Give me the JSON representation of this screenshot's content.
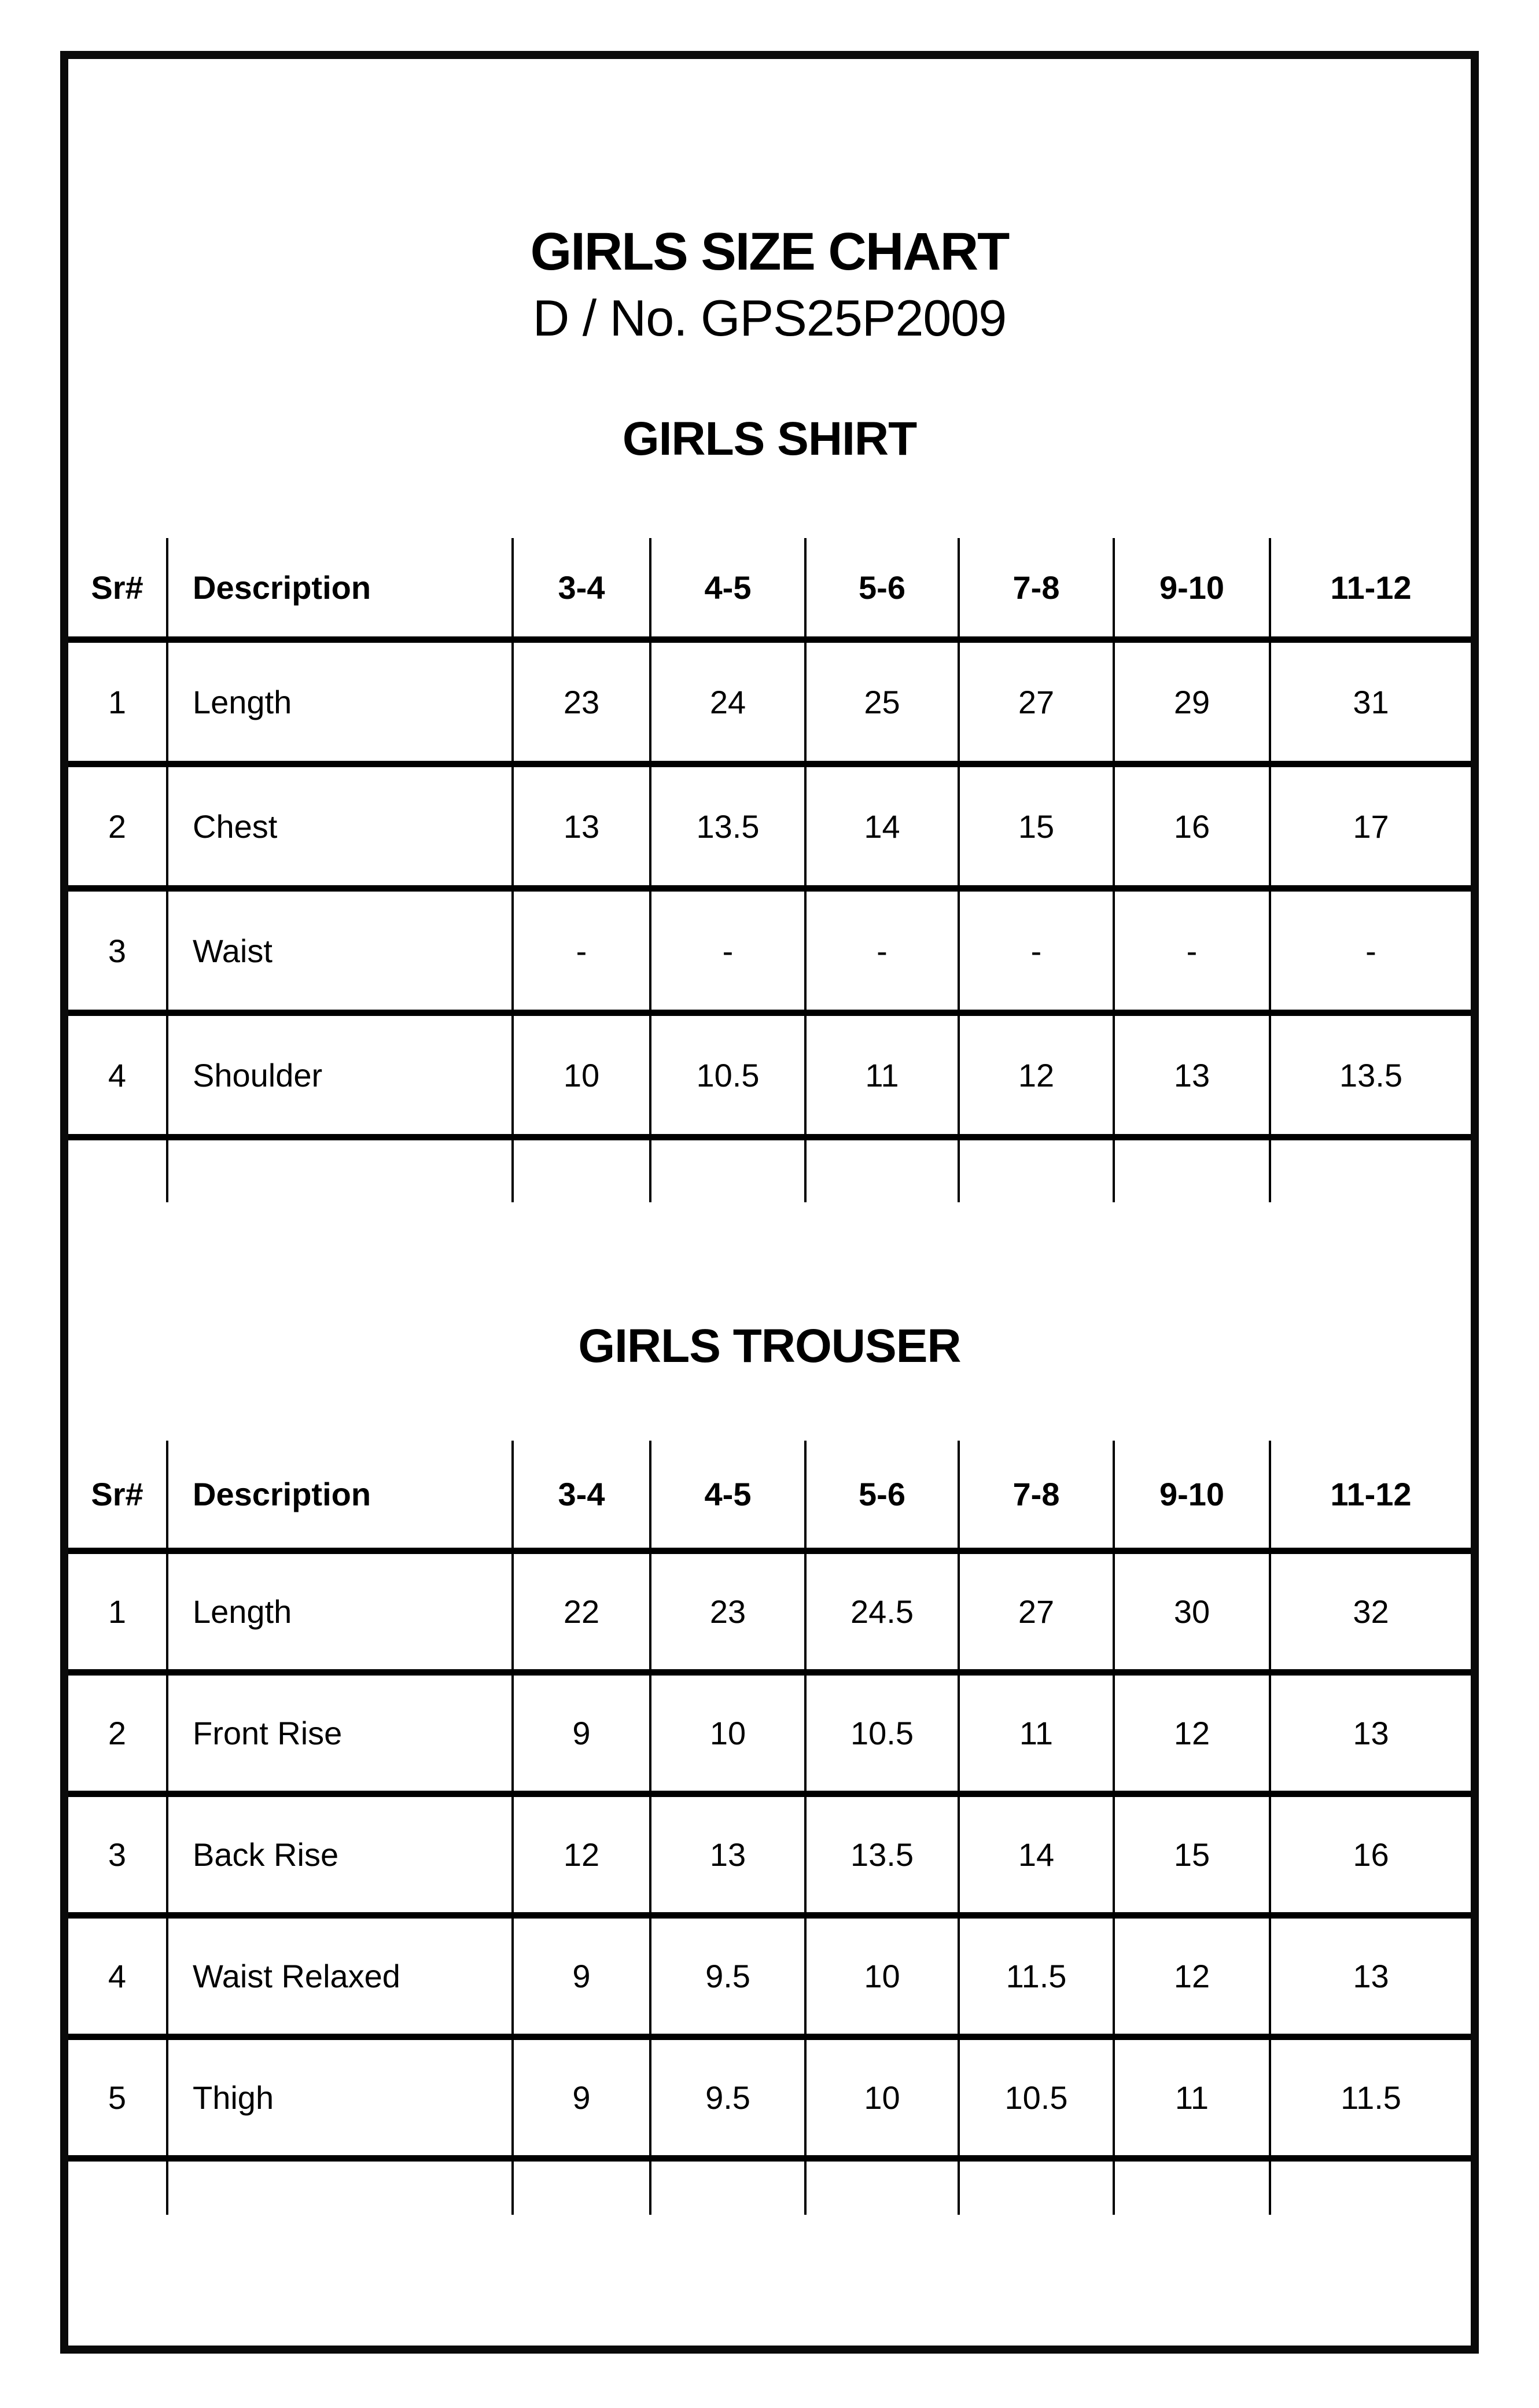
{
  "header": {
    "title": "GIRLS SIZE CHART",
    "design_no": "D / No. GPS25P2009"
  },
  "shirt": {
    "title": "GIRLS SHIRT",
    "columns": [
      "Sr#",
      "Description",
      "3-4",
      "4-5",
      "5-6",
      "7-8",
      "9-10",
      "11-12"
    ],
    "rows": [
      {
        "sr": "1",
        "desc": "Length",
        "values": [
          "23",
          "24",
          "25",
          "27",
          "29",
          "31"
        ]
      },
      {
        "sr": "2",
        "desc": "Chest",
        "values": [
          "13",
          "13.5",
          "14",
          "15",
          "16",
          "17"
        ]
      },
      {
        "sr": "3",
        "desc": "Waist",
        "values": [
          "-",
          "-",
          "-",
          "-",
          "-",
          "-"
        ]
      },
      {
        "sr": "4",
        "desc": "Shoulder",
        "values": [
          "10",
          "10.5",
          "11",
          "12",
          "13",
          "13.5"
        ]
      }
    ]
  },
  "trouser": {
    "title": "GIRLS TROUSER",
    "columns": [
      "Sr#",
      "Description",
      "3-4",
      "4-5",
      "5-6",
      "7-8",
      "9-10",
      "11-12"
    ],
    "rows": [
      {
        "sr": "1",
        "desc": "Length",
        "values": [
          "22",
          "23",
          "24.5",
          "27",
          "30",
          "32"
        ]
      },
      {
        "sr": "2",
        "desc": "Front Rise",
        "values": [
          "9",
          "10",
          "10.5",
          "11",
          "12",
          "13"
        ]
      },
      {
        "sr": "3",
        "desc": "Back Rise",
        "values": [
          "12",
          "13",
          "13.5",
          "14",
          "15",
          "16"
        ]
      },
      {
        "sr": "4",
        "desc": "Waist Relaxed",
        "values": [
          "9",
          "9.5",
          "10",
          "11.5",
          "12",
          "13"
        ]
      },
      {
        "sr": "5",
        "desc": "Thigh",
        "values": [
          "9",
          "9.5",
          "10",
          "10.5",
          "11",
          "11.5"
        ]
      }
    ]
  }
}
